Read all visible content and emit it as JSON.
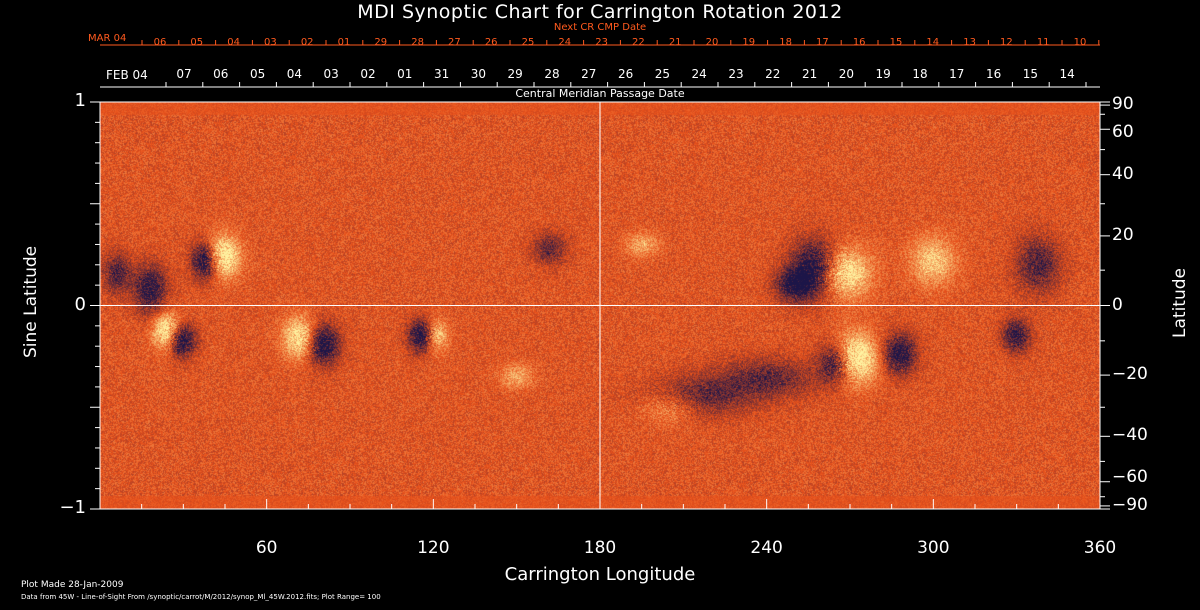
{
  "title": "MDI Synoptic Chart for Carrington Rotation 2012",
  "next_cr_label": "Next CR CMP Date",
  "cmp_label": "Central Meridian Passage Date",
  "next_month_label": "MAR 04",
  "next_dates": [
    "06",
    "05",
    "04",
    "03",
    "02",
    "01",
    "29",
    "28",
    "27",
    "26",
    "25",
    "24",
    "23",
    "22",
    "21",
    "20",
    "19",
    "18",
    "17",
    "16",
    "15",
    "14",
    "13",
    "12",
    "11",
    "10"
  ],
  "month_label": "FEB 04",
  "cmp_dates": [
    "07",
    "06",
    "05",
    "04",
    "03",
    "02",
    "01",
    "31",
    "30",
    "29",
    "28",
    "27",
    "26",
    "25",
    "24",
    "23",
    "22",
    "21",
    "20",
    "19",
    "18",
    "17",
    "16",
    "15",
    "14"
  ],
  "y_left_label": "Sine Latitude",
  "y_right_label": "Latitude",
  "x_label": "Carrington Longitude",
  "y_left_ticks": [
    "1",
    "0",
    "−1"
  ],
  "y_right_ticks": [
    "90",
    "60",
    "40",
    "20",
    "0",
    "−20",
    "−40",
    "−60",
    "−90"
  ],
  "x_ticks": [
    "60",
    "120",
    "180",
    "240",
    "300",
    "360"
  ],
  "plot_made": "Plot Made 28-Jan-2009",
  "data_from": "Data from 45W - Line-of-Sight From /synoptic/carrot/M/2012/synop_Ml_45W.2012.fits; Plot Range=  100",
  "colors": {
    "background": "#000000",
    "field_base": "#e8501a",
    "positive": "#fff2a0",
    "negative": "#1c1548",
    "accent_red": "#ff5a1e"
  },
  "chart_data": {
    "type": "heatmap",
    "title": "MDI Synoptic Chart for Carrington Rotation 2012",
    "xlabel": "Carrington Longitude",
    "ylabel": "Sine Latitude",
    "ylabel_right": "Latitude",
    "xlim": [
      0,
      360
    ],
    "ylim": [
      -1,
      1
    ],
    "grid": "crosshair at longitude 180 and sine latitude 0",
    "plot_range": 100,
    "active_regions": [
      {
        "lon": 42,
        "sinlat": 0.24,
        "polarity": "mixed"
      },
      {
        "lon": 20,
        "sinlat": 0.07,
        "polarity": "negative"
      },
      {
        "lon": 26,
        "sinlat": -0.15,
        "polarity": "mixed"
      },
      {
        "lon": 75,
        "sinlat": -0.19,
        "polarity": "mixed"
      },
      {
        "lon": 117,
        "sinlat": -0.15,
        "polarity": "mixed"
      },
      {
        "lon": 262,
        "sinlat": 0.17,
        "polarity": "mixed"
      },
      {
        "lon": 275,
        "sinlat": -0.28,
        "polarity": "mixed"
      },
      {
        "lon": 330,
        "sinlat": -0.14,
        "polarity": "mixed"
      }
    ]
  }
}
